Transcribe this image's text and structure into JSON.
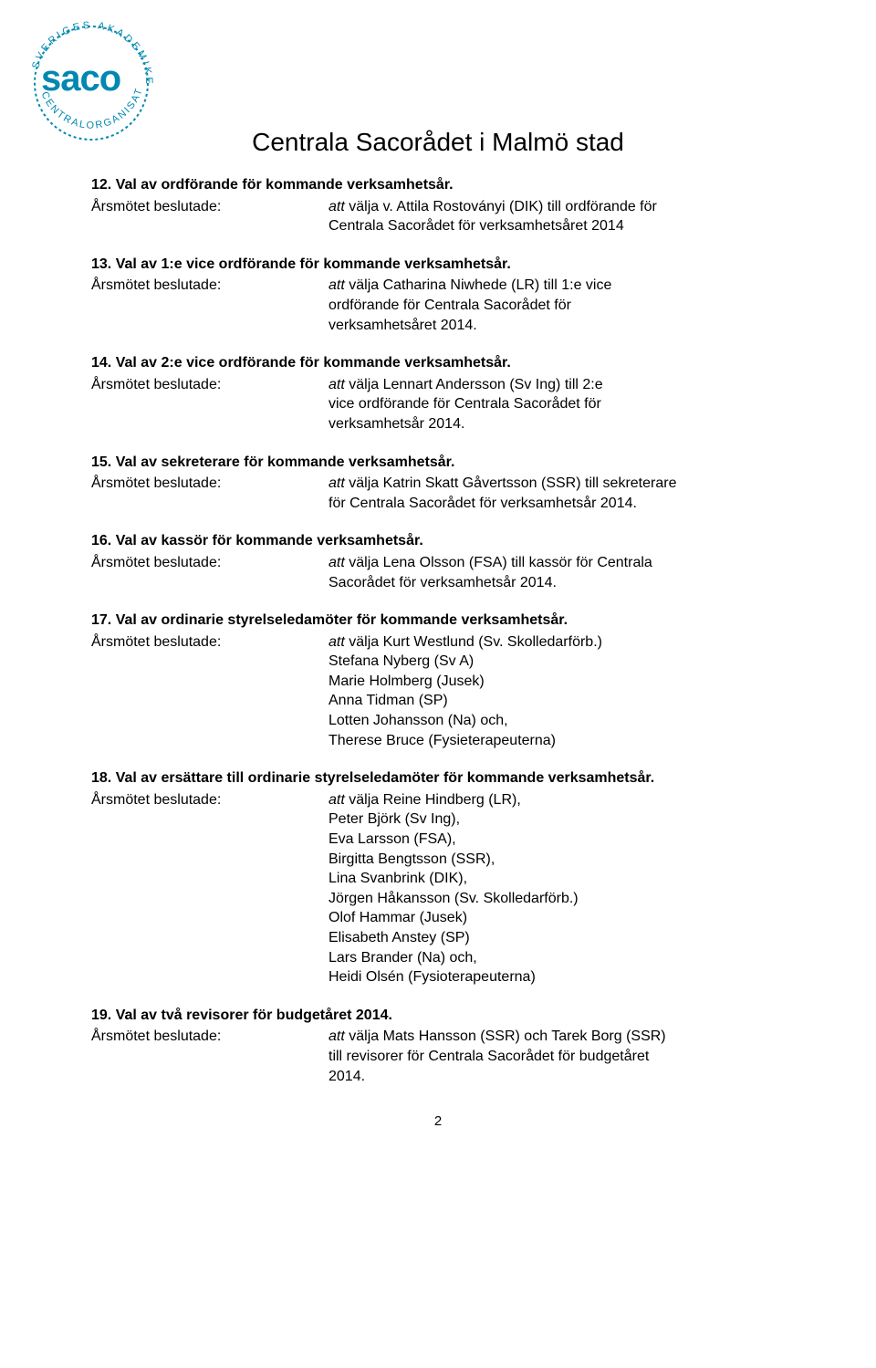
{
  "logo": {
    "word": "saco",
    "ring_color": "#0088b0",
    "text_color": "#0088b0"
  },
  "title": "Centrala Sacorådet i Malmö stad",
  "decision_label": "Årsmötet beslutade:",
  "items": [
    {
      "heading": "Val av ordförande för kommande verksamhetsår.",
      "body_prefix": "att",
      "body_lines": [
        "välja v. Attila Rostoványi (DIK) till ordförande för",
        "Centrala Sacorådet för verksamhetsåret 2014"
      ]
    },
    {
      "heading": "Val av 1:e vice ordförande för kommande verksamhetsår.",
      "body_prefix": "att",
      "body_lines": [
        "välja Catharina Niwhede (LR) till 1:e vice",
        "ordförande för Centrala Sacorådet för",
        "verksamhetsåret 2014."
      ]
    },
    {
      "heading": "Val av 2:e vice ordförande för kommande verksamhetsår.",
      "body_prefix": "att",
      "body_lines": [
        "välja Lennart Andersson (Sv Ing) till 2:e",
        "vice ordförande för Centrala Sacorådet för",
        "verksamhetsår 2014."
      ]
    },
    {
      "heading": "Val av sekreterare för kommande verksamhetsår.",
      "body_prefix": "att",
      "body_lines": [
        "välja Katrin Skatt Gåvertsson (SSR) till sekreterare",
        "för Centrala Sacorådet för verksamhetsår 2014."
      ]
    },
    {
      "heading": "Val av kassör för kommande verksamhetsår.",
      "body_prefix": "att",
      "body_lines": [
        "välja Lena Olsson (FSA) till kassör för Centrala",
        "Sacorådet för verksamhetsår 2014."
      ]
    },
    {
      "heading": "Val av ordinarie styrelseledamöter för kommande verksamhetsår.",
      "body_prefix": "att",
      "body_lines": [
        "välja Kurt Westlund (Sv. Skolledarförb.)",
        "Stefana Nyberg (Sv A)",
        "Marie Holmberg (Jusek)",
        "Anna Tidman (SP)",
        "Lotten Johansson (Na) och,",
        "Therese Bruce (Fysieterapeuterna)"
      ]
    },
    {
      "heading": "Val av ersättare till ordinarie styrelseledamöter för kommande verksamhetsår.",
      "body_prefix": "att",
      "body_lines": [
        "välja Reine Hindberg (LR),",
        "Peter Björk (Sv Ing),",
        "Eva Larsson (FSA),",
        "Birgitta Bengtsson (SSR),",
        "Lina Svanbrink (DIK),",
        "Jörgen Håkansson (Sv. Skolledarförb.)",
        "Olof Hammar (Jusek)",
        "Elisabeth Anstey (SP)",
        "Lars Brander (Na) och,",
        "Heidi Olsén (Fysioterapeuterna)"
      ]
    },
    {
      "heading": "Val av två revisorer för budgetåret 2014.",
      "body_prefix": "att",
      "body_lines": [
        "välja Mats Hansson (SSR) och Tarek Borg (SSR)",
        "till revisorer för Centrala Sacorådet för budgetåret",
        "2014."
      ]
    }
  ],
  "page_number": "2"
}
